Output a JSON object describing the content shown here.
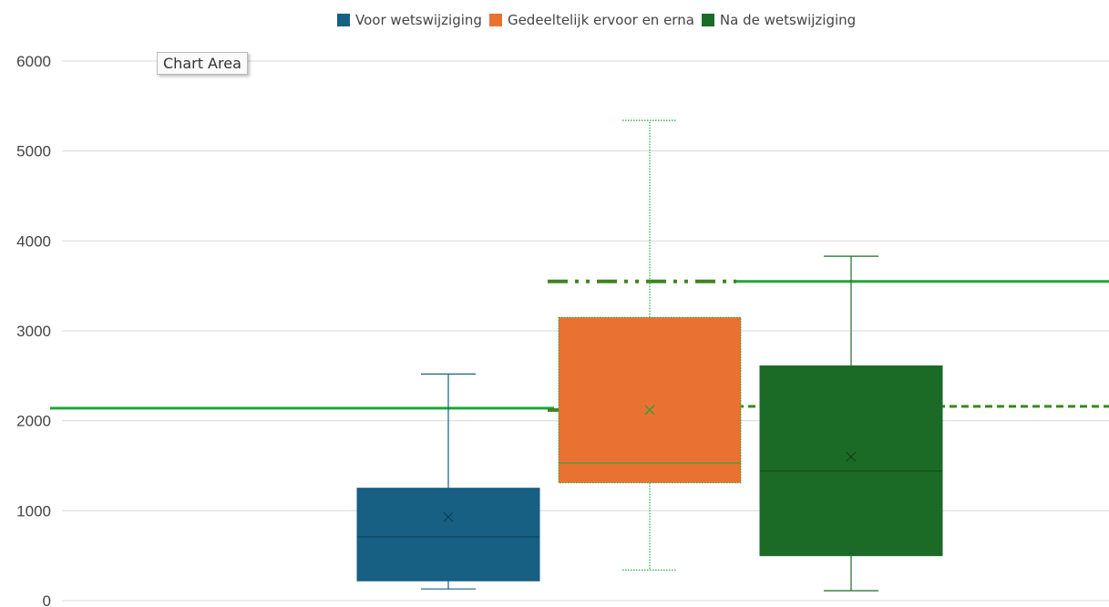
{
  "chart_data": {
    "type": "box",
    "y_ticks": [
      "0",
      "1000",
      "2000",
      "3000",
      "4000",
      "5000",
      "6000"
    ],
    "ylim": [
      0,
      6000
    ],
    "grid": true,
    "legend_position": "top",
    "series": [
      {
        "name": "Voor wetswijziging",
        "color": "#175f83",
        "whisker_min": 130,
        "q1": 220,
        "median": 710,
        "mean": 930,
        "q3": 1250,
        "whisker_max": 2520
      },
      {
        "name": "Gedeeltelijk ervoor en erna",
        "color": "#e97132",
        "whisker_min": 340,
        "q1": 1310,
        "median": 1530,
        "mean": 2120,
        "q3": 3150,
        "whisker_max": 5340
      },
      {
        "name": "Na de wetswijziging",
        "color": "#1b6b26",
        "whisker_min": 110,
        "q1": 500,
        "median": 1440,
        "mean": 1600,
        "q3": 2610,
        "whisker_max": 3830
      }
    ],
    "reference_lines": [
      {
        "style": "solid",
        "color": "#1fa637",
        "y": 2140,
        "x_from": 0,
        "x_to": 0.098
      },
      {
        "style": "solid",
        "color": "#1fa637",
        "y": 3550,
        "x_from": 0.5,
        "x_to": 1
      },
      {
        "style": "dash-dot",
        "color": "#3f8522",
        "y": 3550,
        "x_from": -0.2,
        "x_to": 0.5
      },
      {
        "style": "dash-dot",
        "color": "#3f8522",
        "y": 2120,
        "x_from": -0.2,
        "x_to": 0.5
      },
      {
        "style": "dashed",
        "color": "#3f8522",
        "y": 2160,
        "x_from": 0.5,
        "x_to": 1
      }
    ]
  },
  "tooltip": "Chart Area"
}
